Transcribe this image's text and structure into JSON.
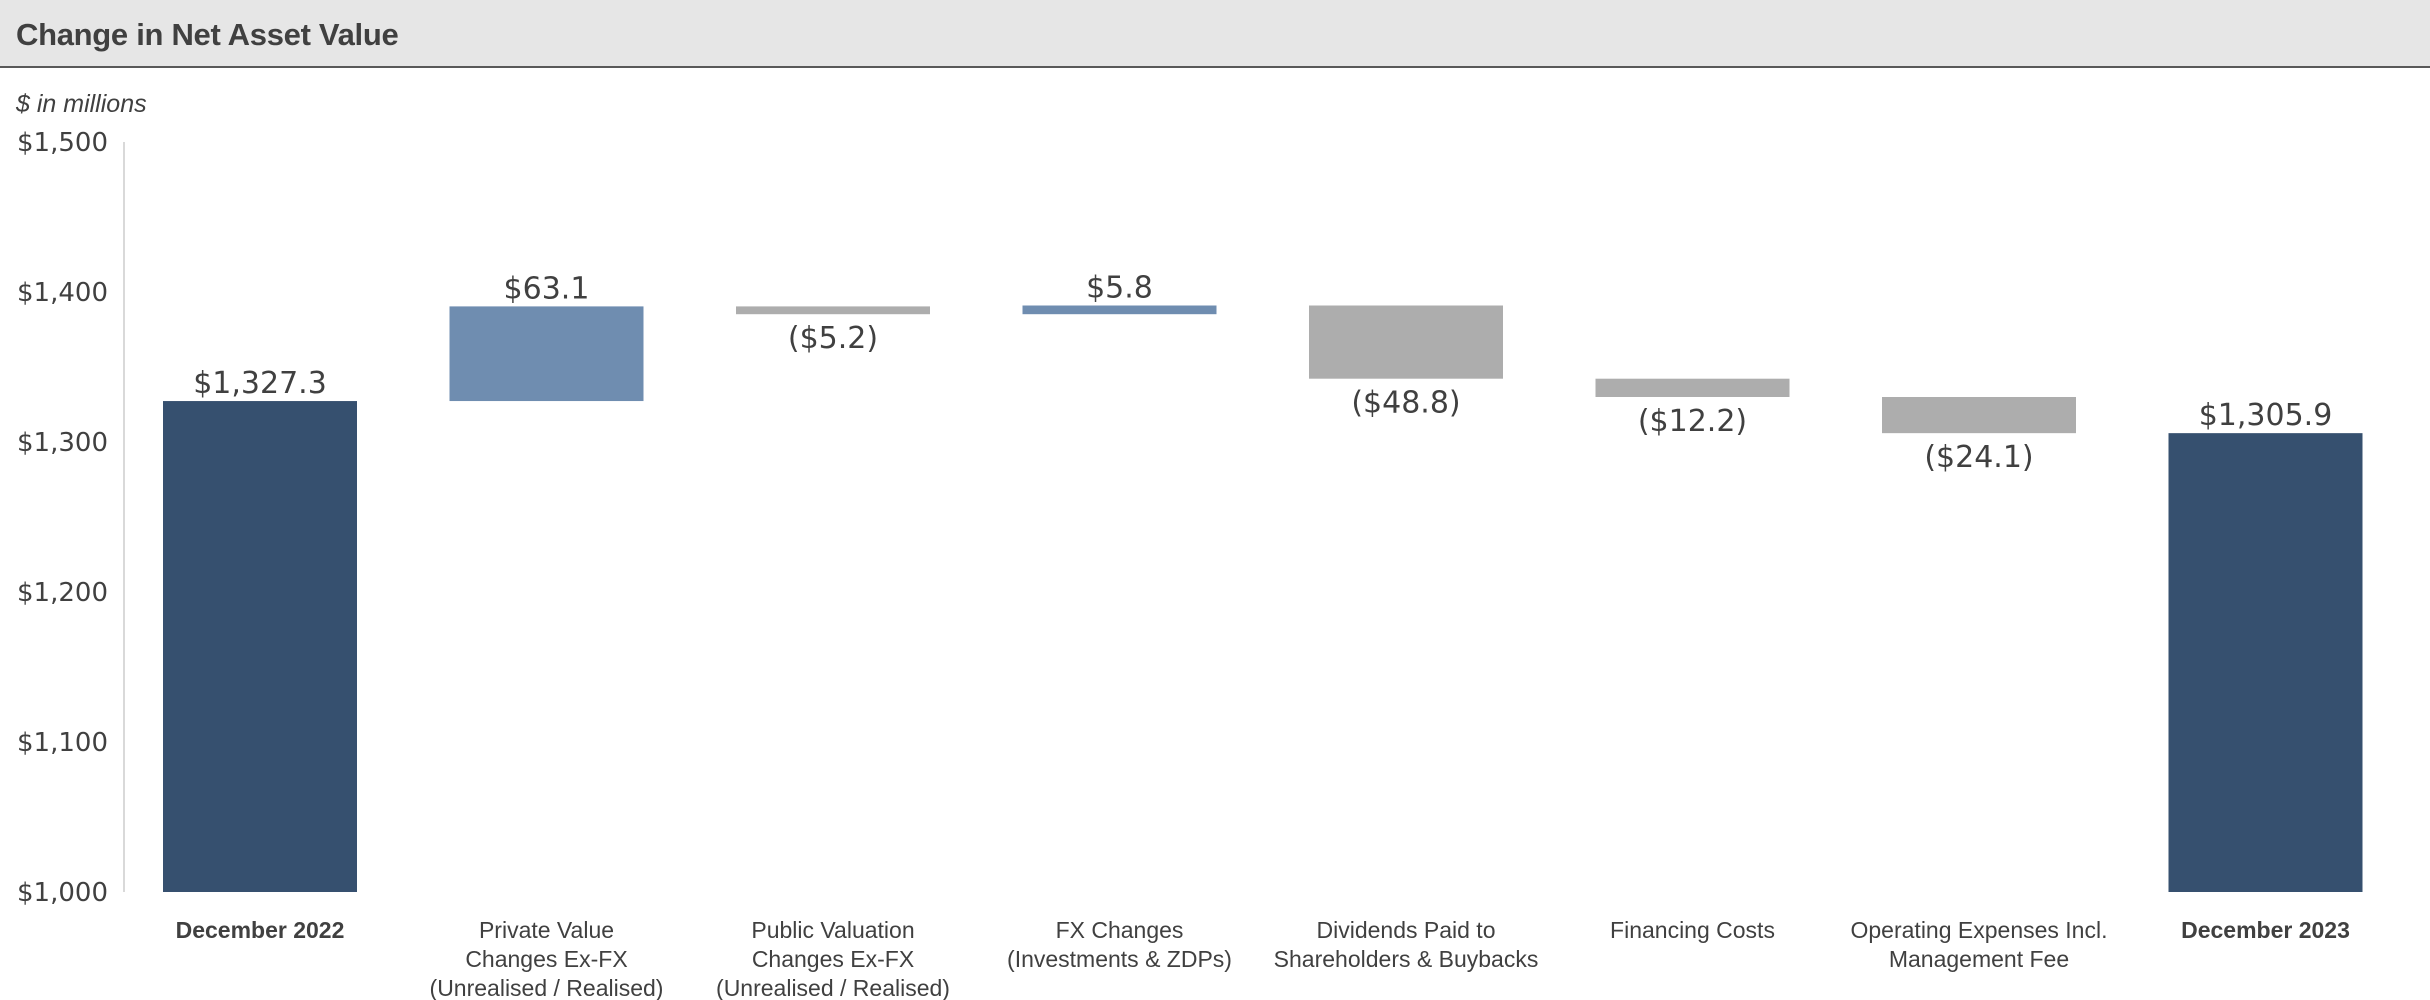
{
  "header": {
    "title": "Change in Net Asset Value"
  },
  "units_label": "$ in millions",
  "colors": {
    "total": "#36506f",
    "increase": "#6f8db0",
    "decrease": "#adadad",
    "text": "#404040",
    "axis": "#d9d9d9"
  },
  "chart_data": {
    "type": "bar",
    "subtype": "waterfall",
    "title": "Change in Net Asset Value",
    "ylabel": "$ in millions",
    "ylim": [
      1000,
      1500
    ],
    "yticks": [
      1000,
      1100,
      1200,
      1300,
      1400,
      1500
    ],
    "ytick_labels": [
      "$1,000",
      "$1,100",
      "$1,200",
      "$1,300",
      "$1,400",
      "$1,500"
    ],
    "grid": false,
    "legend": "none",
    "categories": [
      "December 2022",
      "Private Value Changes Ex-FX (Unrealised / Realised)",
      "Public Valuation Changes Ex-FX (Unrealised / Realised)",
      "FX Changes (Investments & ZDPs)",
      "Dividends Paid to Shareholders & Buybacks",
      "Financing Costs",
      "Operating Expenses Incl. Management Fee",
      "December 2023"
    ],
    "category_lines": [
      [
        "December 2022"
      ],
      [
        "Private Value",
        "Changes Ex-FX",
        "(Unrealised / Realised)"
      ],
      [
        "Public Valuation",
        "Changes Ex-FX",
        "(Unrealised / Realised)"
      ],
      [
        "FX Changes",
        "(Investments & ZDPs)"
      ],
      [
        "Dividends Paid to",
        "Shareholders & Buybacks"
      ],
      [
        "Financing Costs"
      ],
      [
        "Operating Expenses Incl.",
        "Management Fee"
      ],
      [
        "December 2023"
      ]
    ],
    "bar_kinds": [
      "total",
      "increase",
      "decrease",
      "increase",
      "decrease",
      "decrease",
      "decrease",
      "total"
    ],
    "values": [
      1327.3,
      63.1,
      -5.2,
      5.8,
      -48.8,
      -12.2,
      -24.1,
      1305.9
    ],
    "data_labels": [
      "$1,327.3",
      "$63.1",
      "($5.2)",
      "$5.8",
      "($48.8)",
      "($12.2)",
      "($24.1)",
      "$1,305.9"
    ]
  }
}
